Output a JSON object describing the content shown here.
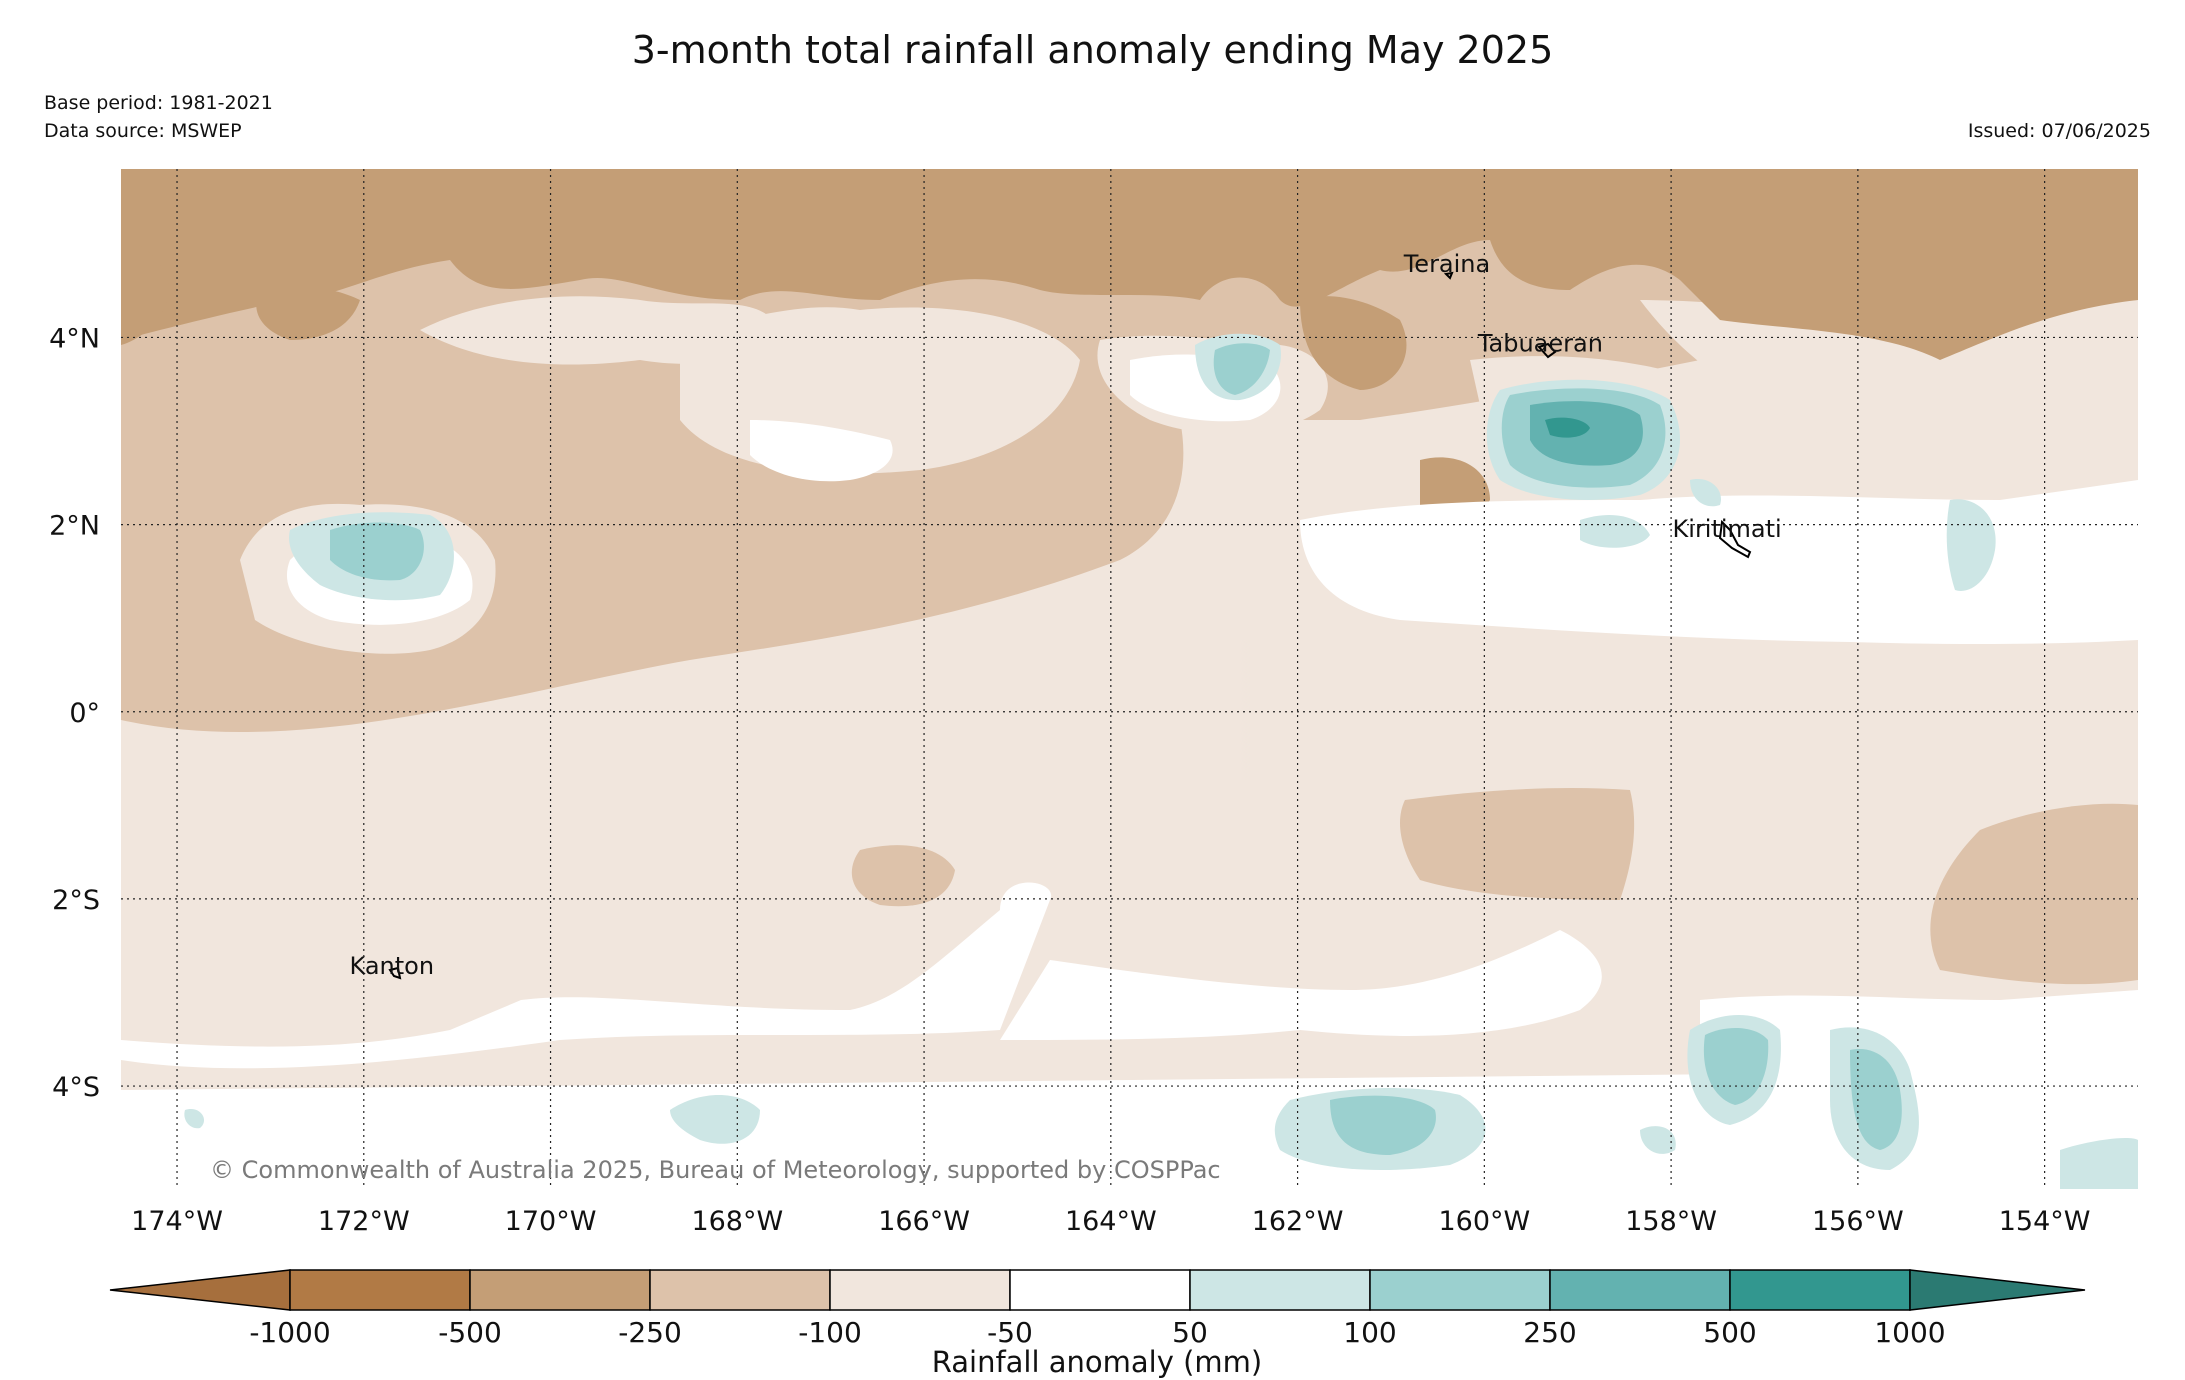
{
  "title": "3-month total rainfall anomaly ending May 2025",
  "base_period": "Base period: 1981-2021",
  "data_source": "Data source: MSWEP",
  "issued": "Issued: 07/06/2025",
  "copyright": "© Commonwealth of Australia 2025, Bureau of Meteorology, supported by COSPPac",
  "map": {
    "lon_range": [
      -174.6,
      -153.0
    ],
    "lat_range": [
      -5.1,
      5.8
    ],
    "lon_labels": [
      "174°W",
      "172°W",
      "170°W",
      "168°W",
      "166°W",
      "164°W",
      "162°W",
      "160°W",
      "158°W",
      "156°W",
      "154°W"
    ],
    "lat_labels": [
      "4°N",
      "2°N",
      "0°",
      "2°S",
      "4°S"
    ],
    "places": [
      {
        "name": "Teraina",
        "lon": -160.4,
        "lat": 4.7
      },
      {
        "name": "Tabuaeran",
        "lon": -159.4,
        "lat": 3.85
      },
      {
        "name": "Kiritimati",
        "lon": -157.4,
        "lat": 1.87
      },
      {
        "name": "Kanton",
        "lon": -171.7,
        "lat": -2.8
      }
    ]
  },
  "colorbar": {
    "title": "Rainfall anomaly (mm)",
    "tick_labels": [
      "-1000",
      "-500",
      "-250",
      "-100",
      "-50",
      "50",
      "100",
      "250",
      "500",
      "1000"
    ],
    "colors": [
      "#a66f3d",
      "#b17a45",
      "#c49e76",
      "#ddc2aa",
      "#f1e6dd",
      "#ffffff",
      "#cde6e5",
      "#9bd0cf",
      "#63b2b0",
      "#32978f",
      "#2b7a72"
    ]
  }
}
